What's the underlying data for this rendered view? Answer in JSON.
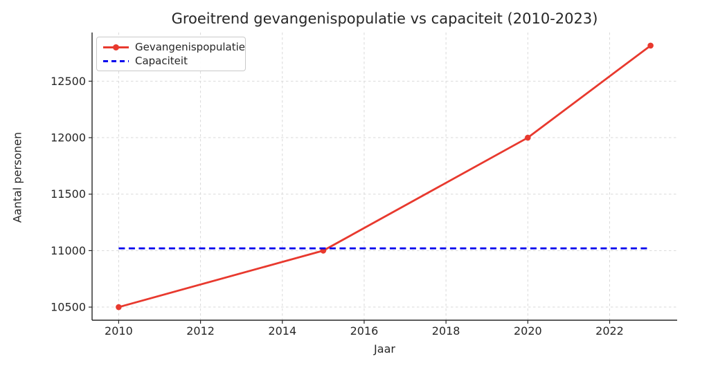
{
  "chart_data": {
    "type": "line",
    "title": "Groeitrend gevangenispopulatie vs capaciteit (2010-2023)",
    "xlabel": "Jaar",
    "ylabel": "Aantal personen",
    "x_ticks": [
      2010,
      2012,
      2014,
      2016,
      2018,
      2020,
      2022
    ],
    "y_ticks": [
      10500,
      11000,
      11500,
      12000,
      12500
    ],
    "xlim": [
      2009.35,
      2023.65
    ],
    "ylim": [
      10384,
      12931
    ],
    "grid": true,
    "grid_style": "dashed",
    "legend_position": "upper left",
    "series": [
      {
        "name": "Gevangenispopulatie",
        "color": "#e8392e",
        "style": "solid",
        "marker": "circle",
        "x": [
          2010,
          2015,
          2020,
          2023
        ],
        "y": [
          10500,
          11000,
          12000,
          12815
        ]
      },
      {
        "name": "Capaciteit",
        "color": "#0000ee",
        "style": "dashed",
        "marker": "none",
        "x": [
          2010,
          2023
        ],
        "y": [
          11020,
          11020
        ]
      }
    ],
    "colors": {
      "grid": "#d9d9d9",
      "spine": "#262626",
      "text": "#262626",
      "background": "#ffffff"
    }
  }
}
